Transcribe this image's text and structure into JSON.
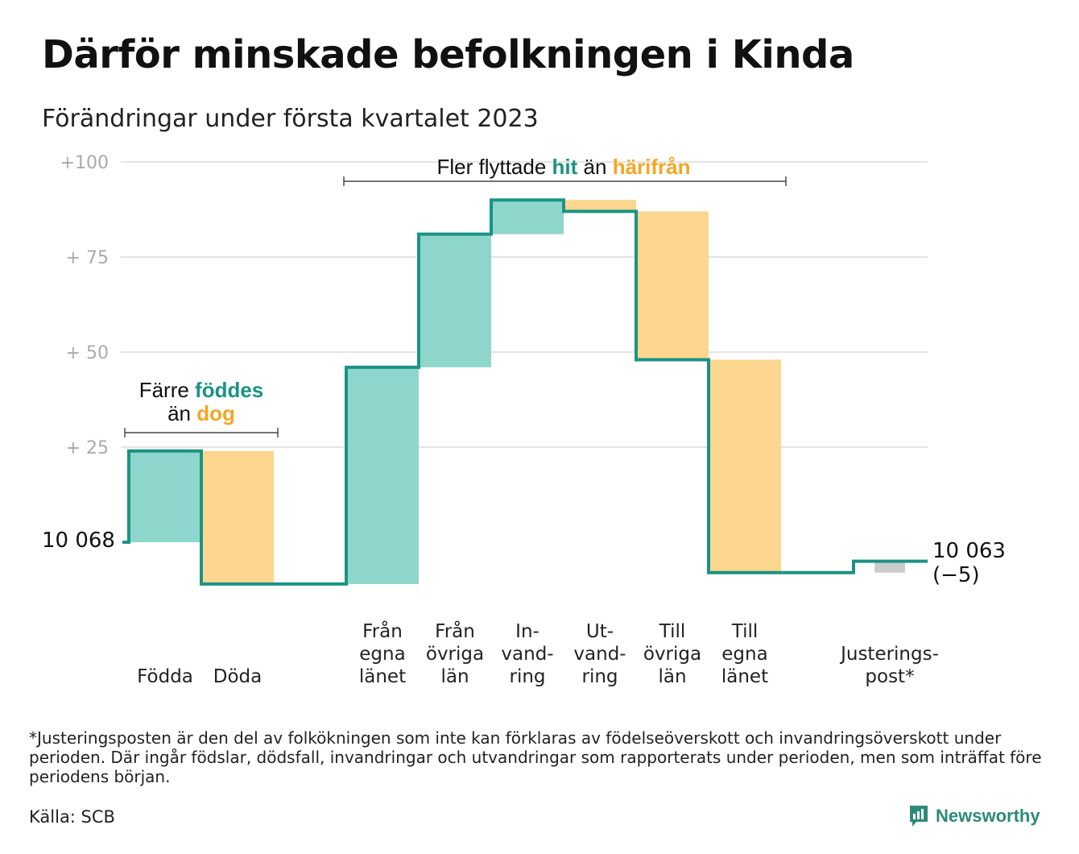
{
  "title": "Därför minskade befolkningen i Kinda",
  "subtitle": "Förändringar under första kvartalet 2023",
  "colors": {
    "inflow": "#8ed6cb",
    "outflow": "#fdd690",
    "adjust": "#cccccc",
    "line": "#1a9384",
    "accent_teal": "#1a9384",
    "accent_orange": "#f5a623",
    "grid": "#e4e4e4"
  },
  "chart_data": {
    "type": "waterfall",
    "title": "Därför minskade befolkningen i Kinda",
    "subtitle": "Förändringar under första kvartalet 2023",
    "baseline_value": 10068,
    "baseline_label": "10 068",
    "end_value": 10063,
    "end_label": "10 063",
    "end_change_label": "(−5)",
    "y_ticks": [
      {
        "value": 100,
        "label": "+100"
      },
      {
        "value": 75,
        "label": "+ 75"
      },
      {
        "value": 50,
        "label": "+ 50"
      },
      {
        "value": 25,
        "label": "+ 25"
      }
    ],
    "ylim": [
      -15,
      100
    ],
    "bars": [
      {
        "label_lines": [
          "Födda"
        ],
        "start": 0,
        "end": 24,
        "kind": "inflow"
      },
      {
        "label_lines": [
          "Döda"
        ],
        "start": 24,
        "end": -11,
        "kind": "outflow"
      },
      {
        "label_lines": [
          "Från",
          "egna",
          "länet"
        ],
        "start": -11,
        "end": 46,
        "kind": "inflow"
      },
      {
        "label_lines": [
          "Från",
          "övriga",
          "län"
        ],
        "start": 46,
        "end": 81,
        "kind": "inflow"
      },
      {
        "label_lines": [
          "In-",
          "vand-",
          "ring"
        ],
        "start": 81,
        "end": 90,
        "kind": "inflow"
      },
      {
        "label_lines": [
          "Ut-",
          "vand-",
          "ring"
        ],
        "start": 90,
        "end": 87,
        "kind": "outflow"
      },
      {
        "label_lines": [
          "Till",
          "övriga",
          "län"
        ],
        "start": 87,
        "end": 48,
        "kind": "outflow"
      },
      {
        "label_lines": [
          "Till",
          "egna",
          "länet"
        ],
        "start": 48,
        "end": -8,
        "kind": "outflow"
      },
      {
        "label_lines": [
          "Justerings-",
          "post*"
        ],
        "start": -8,
        "end": -5,
        "kind": "adjust"
      }
    ],
    "annotations": [
      {
        "parts": [
          {
            "text": "Färre ",
            "style": "plain"
          },
          {
            "text": "föddes",
            "style": "teal"
          }
        ],
        "line2": [
          {
            "text": "än ",
            "style": "plain"
          },
          {
            "text": "dog",
            "style": "orange"
          }
        ]
      },
      {
        "parts": [
          {
            "text": "Fler flyttade ",
            "style": "plain"
          },
          {
            "text": "hit",
            "style": "teal"
          },
          {
            "text": " än ",
            "style": "plain"
          },
          {
            "text": "härifrån",
            "style": "orange"
          }
        ]
      }
    ]
  },
  "footnote": "*Justeringsposten är den del av folkökningen som inte kan förklaras av födelseöverskott och invandringsöverskott under perioden. Där ingår födslar, dödsfall, invandringar och utvandringar som rapporterats under perioden, men som inträffat före periodens början.",
  "source": "Källa: SCB",
  "logo": {
    "text": "Newsworthy",
    "icon": "newsworthy-logo-icon"
  }
}
